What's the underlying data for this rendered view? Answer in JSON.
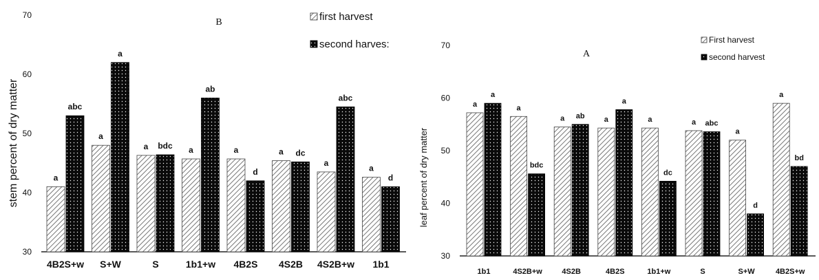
{
  "chart_data": [
    {
      "type": "bar",
      "panel_label": "B",
      "ylabel": "stem percent of dry matter",
      "ylim": [
        30,
        70
      ],
      "yticks": [
        "30",
        "40",
        "50",
        "60",
        "70"
      ],
      "categories": [
        "4B2S+w",
        "S+W",
        "S",
        "1b1+w",
        "4B2S",
        "4S2B",
        "4S2B+w",
        "1b1"
      ],
      "series": [
        {
          "name": "first harvest",
          "values": [
            41,
            48,
            46.3,
            45.7,
            45.7,
            45.4,
            43.5,
            42.6
          ],
          "labels": [
            "a",
            "a",
            "a",
            "a",
            "a",
            "a",
            "a",
            "a"
          ]
        },
        {
          "name": "second harves:",
          "values": [
            53,
            62,
            46.4,
            56,
            42,
            45.2,
            54.5,
            41
          ],
          "labels": [
            "abc",
            "a",
            "bdc",
            "ab",
            "d",
            "dc",
            "abc",
            "d"
          ]
        }
      ],
      "legend_position": "top-right"
    },
    {
      "type": "bar",
      "panel_label": "A",
      "ylabel": "leaf percent of dry matter",
      "ylim": [
        30,
        70
      ],
      "yticks": [
        "30",
        "40",
        "50",
        "60",
        "70"
      ],
      "categories": [
        "1b1",
        "4S2B+w",
        "4S2B",
        "4B2S",
        "1b1+w",
        "S",
        "S+W",
        "4B2S+w"
      ],
      "series": [
        {
          "name": "First harvest",
          "values": [
            57.2,
            56.5,
            54.5,
            54.3,
            54.3,
            53.8,
            52,
            59
          ],
          "labels": [
            "a",
            "a",
            "a",
            "a",
            "a",
            "a",
            "a",
            "a"
          ]
        },
        {
          "name": "second harvest",
          "values": [
            59,
            45.6,
            55,
            57.8,
            44.2,
            53.6,
            38,
            47
          ],
          "labels": [
            "a",
            "bdc",
            "ab",
            "a",
            "dc",
            "abc",
            "d",
            "bd"
          ]
        }
      ],
      "legend_position": "top-right"
    }
  ]
}
